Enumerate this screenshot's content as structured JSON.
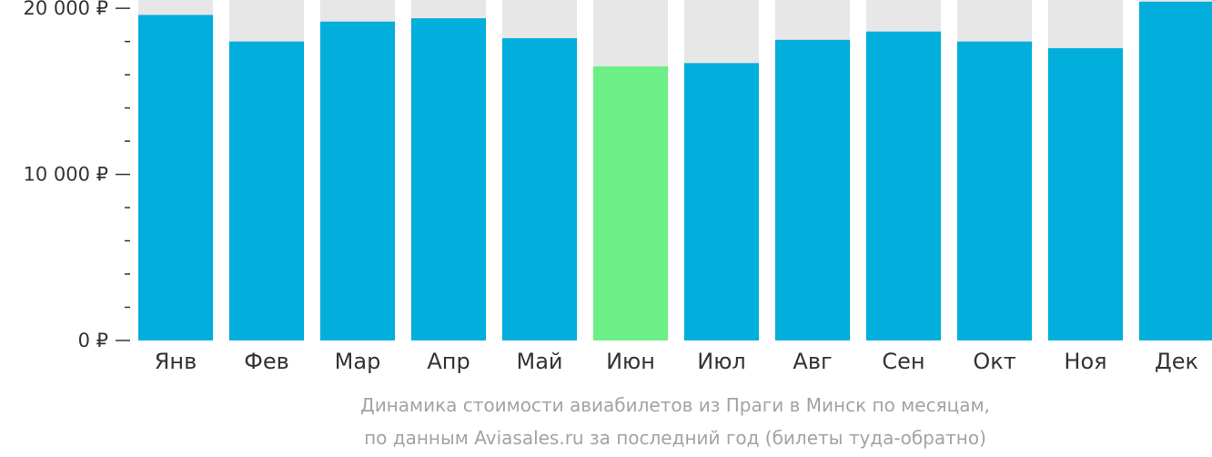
{
  "chart_data": {
    "type": "bar",
    "categories": [
      "Янв",
      "Фев",
      "Мар",
      "Апр",
      "Май",
      "Июн",
      "Июл",
      "Авг",
      "Сен",
      "Окт",
      "Ноя",
      "Дек"
    ],
    "values": [
      19600,
      18000,
      19200,
      19400,
      18200,
      16500,
      16700,
      18100,
      18600,
      18000,
      17600,
      20400
    ],
    "highlight_index": 5,
    "ylim": [
      0,
      20500
    ],
    "y_ticks": [
      {
        "value": 0,
        "label": "0 ₽"
      },
      {
        "value": 10000,
        "label": "10 000 ₽"
      },
      {
        "value": 20000,
        "label": "20 000 ₽"
      }
    ],
    "y_minor_step": 2000,
    "caption": [
      "Динамика стоимости авиабилетов из Праги в Минск по месяцам,",
      "по данным Aviasales.ru за последний год (билеты туда-обратно)"
    ],
    "colors": {
      "bar": "#02aedb",
      "highlight": "#6bef86",
      "track": "#e7e7e7",
      "axis": "#333333",
      "caption": "#a3a3a3"
    }
  }
}
